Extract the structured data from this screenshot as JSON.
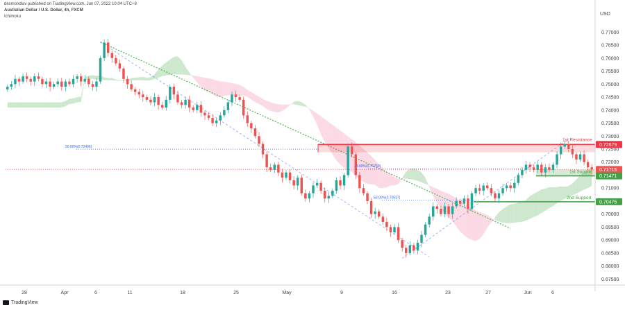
{
  "header": {
    "published": "desmondlav published on TradingView.com, Jun 07, 2022 10:04 UTC+8",
    "symbol": "Australian Dollar / U.S. Dollar, 4h, FXCM",
    "indicator": "Ichimoku"
  },
  "footer": {
    "brand": "TradingView"
  },
  "colors": {
    "up": "#26a69a",
    "down": "#ef5350",
    "resistance": "#f23645",
    "support": "#43a047",
    "fib": "#2962ff",
    "cloud_green": "#a5d6a7",
    "cloud_red": "#f8bbd0",
    "trend": "#4caf50"
  },
  "chart_data": {
    "type": "candlestick",
    "currency": "USD",
    "ylim": [
      0.6735,
      0.7765
    ],
    "y_ticks": [
      "0.77000",
      "0.76500",
      "0.76000",
      "0.75500",
      "0.75000",
      "0.74500",
      "0.74000",
      "0.73500",
      "0.73000",
      "0.72500",
      "0.72000",
      "0.71500",
      "0.71000",
      "0.70500",
      "0.70000",
      "0.69500",
      "0.69000",
      "0.68500",
      "0.68000",
      "0.67500"
    ],
    "x_ticks": [
      "28",
      "Apr",
      "6",
      "11",
      "18",
      "25",
      "May",
      "9",
      "16",
      "23",
      "27",
      "Jun",
      "6"
    ],
    "levels": [
      {
        "name": "1st Resistance",
        "value": "0.72679",
        "kind": "resistance"
      },
      {
        "name": "1st Support",
        "value": "0.71471",
        "kind": "support"
      },
      {
        "name": "2nd Support",
        "value": "0.70475",
        "kind": "support"
      }
    ],
    "current_price": "0.71715",
    "fib_labels": [
      "50.00%(0.72496)",
      "23.60%(0.71750)",
      "50.00%(0.70537)"
    ],
    "closes": [
      0.749,
      0.75,
      0.752,
      0.751,
      0.753,
      0.752,
      0.751,
      0.753,
      0.752,
      0.75,
      0.751,
      0.749,
      0.75,
      0.751,
      0.749,
      0.751,
      0.75,
      0.752,
      0.753,
      0.751,
      0.752,
      0.75,
      0.749,
      0.751,
      0.76,
      0.766,
      0.762,
      0.76,
      0.758,
      0.756,
      0.752,
      0.75,
      0.748,
      0.747,
      0.746,
      0.745,
      0.744,
      0.743,
      0.745,
      0.742,
      0.741,
      0.744,
      0.749,
      0.746,
      0.743,
      0.742,
      0.744,
      0.741,
      0.74,
      0.742,
      0.739,
      0.738,
      0.737,
      0.735,
      0.736,
      0.738,
      0.74,
      0.743,
      0.746,
      0.745,
      0.744,
      0.738,
      0.735,
      0.733,
      0.73,
      0.727,
      0.723,
      0.718,
      0.717,
      0.719,
      0.716,
      0.714,
      0.716,
      0.713,
      0.711,
      0.714,
      0.708,
      0.706,
      0.708,
      0.711,
      0.712,
      0.709,
      0.706,
      0.707,
      0.709,
      0.713,
      0.711,
      0.715,
      0.726,
      0.723,
      0.715,
      0.71,
      0.708,
      0.705,
      0.7,
      0.701,
      0.699,
      0.697,
      0.695,
      0.693,
      0.695,
      0.69,
      0.687,
      0.685,
      0.688,
      0.686,
      0.689,
      0.692,
      0.696,
      0.699,
      0.703,
      0.702,
      0.7,
      0.703,
      0.7,
      0.703,
      0.705,
      0.704,
      0.706,
      0.702,
      0.708,
      0.71,
      0.709,
      0.711,
      0.71,
      0.708,
      0.706,
      0.708,
      0.71,
      0.711,
      0.71,
      0.712,
      0.715,
      0.717,
      0.719,
      0.718,
      0.717,
      0.719,
      0.716,
      0.718,
      0.717,
      0.719,
      0.723,
      0.726,
      0.727,
      0.725,
      0.723,
      0.721,
      0.723,
      0.72,
      0.718,
      0.7172
    ]
  }
}
